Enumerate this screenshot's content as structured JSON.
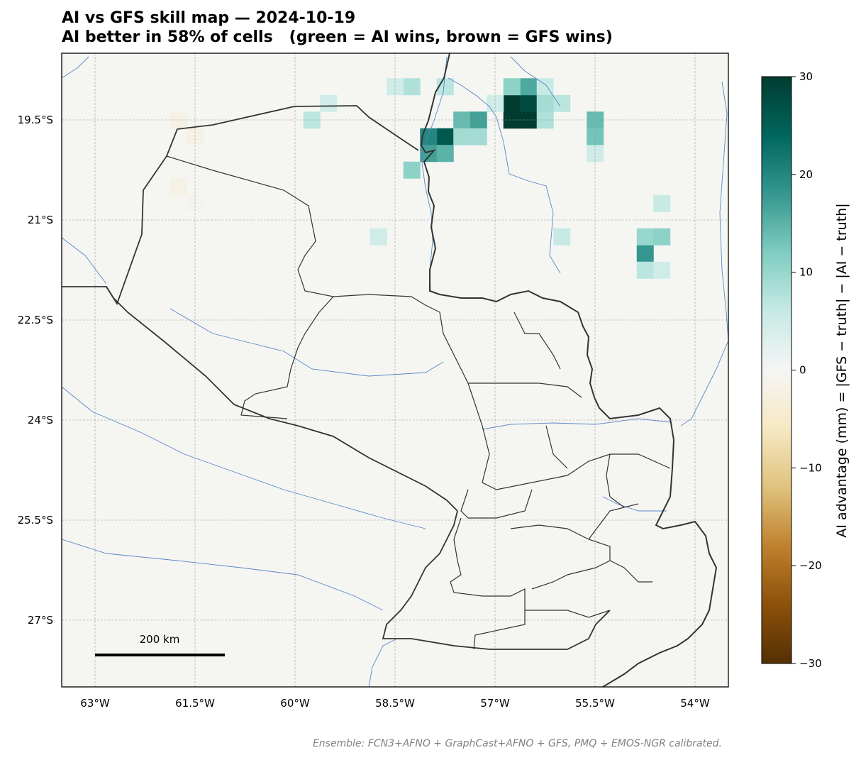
{
  "title": "AI vs GFS skill map — 2024-10-19",
  "subtitle": "AI better in 58% of cells   (green = AI wins, brown = GFS wins)",
  "footer": "Ensemble: FCN3+AFNO + GraphCast+AFNO + GFS, PMQ + EMOS-NGR calibrated.",
  "scale_bar": {
    "label": "200 km"
  },
  "map": {
    "lon_range": [
      -63.5,
      -53.5
    ],
    "lat_range": [
      -28.0,
      -18.5
    ],
    "lon_ticks": [
      {
        "value": -63.0,
        "label": "63°W"
      },
      {
        "value": -61.5,
        "label": "61.5°W"
      },
      {
        "value": -60.0,
        "label": "60°W"
      },
      {
        "value": -58.5,
        "label": "58.5°W"
      },
      {
        "value": -57.0,
        "label": "57°W"
      },
      {
        "value": -55.5,
        "label": "55.5°W"
      },
      {
        "value": -54.0,
        "label": "54°W"
      }
    ],
    "lat_ticks": [
      {
        "value": -19.5,
        "label": "19.5°S"
      },
      {
        "value": -21.0,
        "label": "21°S"
      },
      {
        "value": -22.5,
        "label": "22.5°S"
      },
      {
        "value": -24.0,
        "label": "24°S"
      },
      {
        "value": -25.5,
        "label": "25.5°S"
      },
      {
        "value": -27.0,
        "label": "27°S"
      }
    ],
    "gridlines": true
  },
  "colorbar": {
    "label": "AI advantage (mm) = |GFS − truth| − |AI − truth|",
    "range": [
      -30,
      30
    ],
    "ticks": [
      {
        "value": 30,
        "label": "30"
      },
      {
        "value": 20,
        "label": "20"
      },
      {
        "value": 10,
        "label": "10"
      },
      {
        "value": 0,
        "label": "0"
      },
      {
        "value": -10,
        "label": "−10"
      },
      {
        "value": -20,
        "label": "−20"
      },
      {
        "value": -30,
        "label": "−30"
      }
    ],
    "colors": [
      "#543005",
      "#8c510a",
      "#bf812d",
      "#dfc27d",
      "#f6e8c3",
      "#f5f5f5",
      "#c7eae5",
      "#80cdc1",
      "#35978f",
      "#01665e",
      "#003c30"
    ]
  },
  "colors": {
    "background": "#f5f6f2",
    "river": "#5b86c9",
    "border": "#333333"
  },
  "highlight_cells": [
    {
      "lon": -56.75,
      "lat": -19.5,
      "value": 30
    },
    {
      "lon": -56.5,
      "lat": -19.5,
      "value": 30
    },
    {
      "lon": -56.75,
      "lat": -19.25,
      "value": 30
    },
    {
      "lon": -56.5,
      "lat": -19.25,
      "value": 28
    },
    {
      "lon": -56.5,
      "lat": -19.0,
      "value": 16
    },
    {
      "lon": -56.75,
      "lat": -19.0,
      "value": 11
    },
    {
      "lon": -56.25,
      "lat": -19.0,
      "value": 6
    },
    {
      "lon": -56.0,
      "lat": -19.25,
      "value": 7
    },
    {
      "lon": -56.25,
      "lat": -19.25,
      "value": 9
    },
    {
      "lon": -56.25,
      "lat": -19.5,
      "value": 8
    },
    {
      "lon": -57.0,
      "lat": -19.25,
      "value": 5
    },
    {
      "lon": -57.75,
      "lat": -19.75,
      "value": 26
    },
    {
      "lon": -58.0,
      "lat": -19.75,
      "value": 20
    },
    {
      "lon": -58.0,
      "lat": -20.0,
      "value": 17
    },
    {
      "lon": -57.75,
      "lat": -20.0,
      "value": 15
    },
    {
      "lon": -57.5,
      "lat": -19.5,
      "value": 14
    },
    {
      "lon": -57.25,
      "lat": -19.5,
      "value": 17
    },
    {
      "lon": -57.5,
      "lat": -19.75,
      "value": 9
    },
    {
      "lon": -57.25,
      "lat": -19.75,
      "value": 9
    },
    {
      "lon": -58.25,
      "lat": -20.25,
      "value": 11
    },
    {
      "lon": -57.75,
      "lat": -19.0,
      "value": 7
    },
    {
      "lon": -58.25,
      "lat": -19.0,
      "value": 8
    },
    {
      "lon": -58.5,
      "lat": -19.0,
      "value": 5
    },
    {
      "lon": -55.5,
      "lat": -19.5,
      "value": 14
    },
    {
      "lon": -55.5,
      "lat": -19.75,
      "value": 13
    },
    {
      "lon": -55.5,
      "lat": -20.0,
      "value": 5
    },
    {
      "lon": -54.75,
      "lat": -21.5,
      "value": 18
    },
    {
      "lon": -54.75,
      "lat": -21.25,
      "value": 10
    },
    {
      "lon": -54.5,
      "lat": -21.25,
      "value": 11
    },
    {
      "lon": -54.75,
      "lat": -21.75,
      "value": 7
    },
    {
      "lon": -54.5,
      "lat": -21.75,
      "value": 5
    },
    {
      "lon": -54.5,
      "lat": -20.75,
      "value": 6
    },
    {
      "lon": -56.0,
      "lat": -21.25,
      "value": 6
    },
    {
      "lon": -59.75,
      "lat": -19.5,
      "value": 7
    },
    {
      "lon": -59.5,
      "lat": -19.25,
      "value": 5
    },
    {
      "lon": -58.75,
      "lat": -21.25,
      "value": 5
    },
    {
      "lon": -61.75,
      "lat": -19.5,
      "value": -2
    },
    {
      "lon": -61.5,
      "lat": -19.75,
      "value": -2
    },
    {
      "lon": -61.75,
      "lat": -20.5,
      "value": -2
    },
    {
      "lon": -61.5,
      "lat": -20.75,
      "value": -1
    }
  ]
}
